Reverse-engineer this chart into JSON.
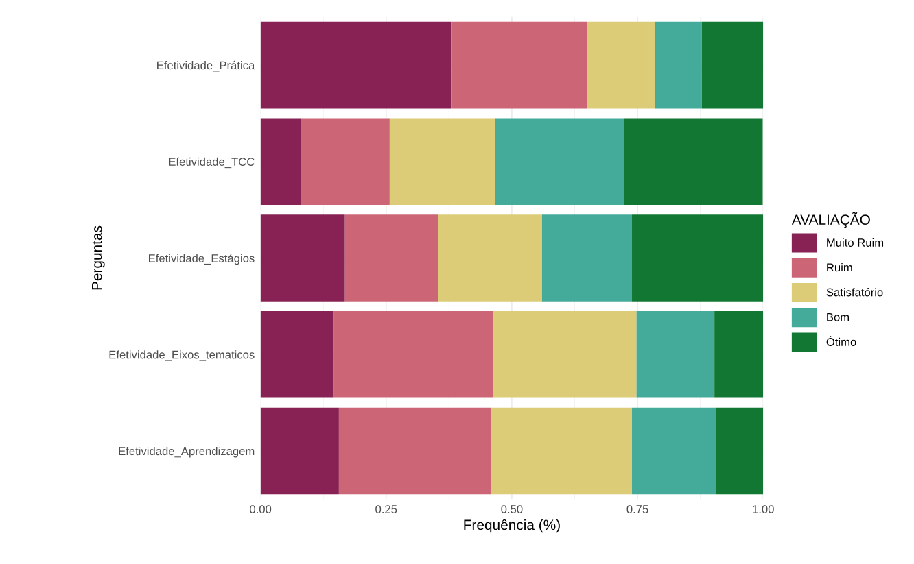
{
  "chart_data": {
    "type": "bar",
    "orientation": "horizontal",
    "stacked": true,
    "xlabel": "Frequência (%)",
    "ylabel": "Perguntas",
    "legend_title": "AVALIAÇÃO",
    "legend": "right",
    "grid": true,
    "categories": [
      "Efetividade_Prática",
      "Efetividade_TCC",
      "Efetividade_Estágios",
      "Efetividade_Eixos_tematicos",
      "Efetividade_Aprendizagem"
    ],
    "xlim": [
      0,
      1
    ],
    "xticks": [
      {
        "value": 0,
        "label": "0.00"
      },
      {
        "value": 0.25,
        "label": "0.25"
      },
      {
        "value": 0.5,
        "label": "0.50"
      },
      {
        "value": 0.75,
        "label": "0.75"
      },
      {
        "value": 1,
        "label": "1.00"
      }
    ],
    "series": [
      {
        "name": "Muito Ruim",
        "color": "#882255",
        "values": [
          0.379,
          0.08,
          0.168,
          0.146,
          0.156
        ]
      },
      {
        "name": "Ruim",
        "color": "#cc6677",
        "values": [
          0.271,
          0.177,
          0.186,
          0.316,
          0.303
        ]
      },
      {
        "name": "Satisfatório",
        "color": "#ddcc77",
        "values": [
          0.134,
          0.21,
          0.206,
          0.286,
          0.28
        ]
      },
      {
        "name": "Bom",
        "color": "#44aa99",
        "values": [
          0.094,
          0.256,
          0.179,
          0.155,
          0.167
        ]
      },
      {
        "name": "Ótimo",
        "color": "#117733",
        "values": [
          0.122,
          0.276,
          0.261,
          0.097,
          0.094
        ]
      }
    ]
  }
}
